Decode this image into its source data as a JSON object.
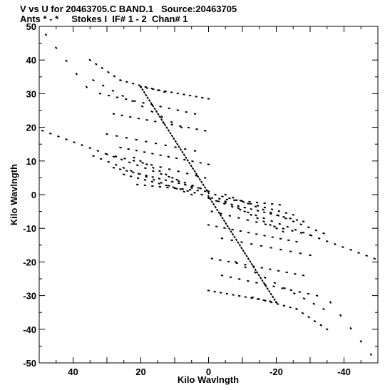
{
  "chart_data": {
    "type": "scatter",
    "title_line1": "V vs U for 20463705.C BAND.1   Source:20463705",
    "title_line2": "Ants * - *     Stokes I  IF# 1 - 2  Chan# 1",
    "xlabel": "Kilo Wavlngth",
    "ylabel": "Kilo Wavlngth",
    "xlim": [
      50,
      -50
    ],
    "ylim": [
      -50,
      50
    ],
    "x_ticks": [
      40,
      20,
      0,
      -20,
      -40
    ],
    "y_ticks": [
      50,
      40,
      30,
      20,
      10,
      0,
      -10,
      -20,
      -30,
      -40,
      -50
    ],
    "marker_color": "#000000",
    "tracks": [
      {
        "start": [
          48,
          47.5
        ],
        "end": [
          36,
          32
        ],
        "n": 5
      },
      {
        "start": [
          35,
          40
        ],
        "end": [
          26,
          34
        ],
        "n": 6
      },
      {
        "start": [
          26,
          34
        ],
        "end": [
          13,
          30.5
        ],
        "n": 8
      },
      {
        "start": [
          20,
          32
        ],
        "end": [
          0,
          28.5
        ],
        "n": 12
      },
      {
        "start": [
          34,
          34
        ],
        "end": [
          8,
          20
        ],
        "n": 10
      },
      {
        "start": [
          32,
          30
        ],
        "end": [
          4,
          24
        ],
        "n": 12
      },
      {
        "start": [
          28,
          24
        ],
        "end": [
          1,
          19
        ],
        "n": 12
      },
      {
        "start": [
          30,
          18
        ],
        "end": [
          4,
          13
        ],
        "n": 10
      },
      {
        "start": [
          26,
          14
        ],
        "end": [
          0,
          9
        ],
        "n": 12
      },
      {
        "start": [
          30,
          12
        ],
        "end": [
          1,
          5
        ],
        "n": 12
      },
      {
        "start": [
          34,
          11.5
        ],
        "end": [
          5,
          0
        ],
        "n": 14
      },
      {
        "start": [
          49,
          19
        ],
        "end": [
          0,
          1
        ],
        "n": 22
      },
      {
        "start": [
          22,
          11
        ],
        "end": [
          5,
          2
        ],
        "n": 10
      },
      {
        "start": [
          25,
          6
        ],
        "end": [
          2,
          0
        ],
        "n": 12
      },
      {
        "start": [
          21,
          3
        ],
        "end": [
          1,
          1
        ],
        "n": 10
      },
      {
        "start": [
          20,
          32
        ],
        "end": [
          0,
          0.5
        ],
        "n": 40
      },
      {
        "start": [
          28,
          8
        ],
        "end": [
          3,
          2
        ],
        "n": 14
      },
      {
        "start": [
          -48,
          -47.5
        ],
        "end": [
          -36,
          -32
        ],
        "n": 5
      },
      {
        "start": [
          -35,
          -40
        ],
        "end": [
          -26,
          -34
        ],
        "n": 6
      },
      {
        "start": [
          -26,
          -34
        ],
        "end": [
          -13,
          -30.5
        ],
        "n": 8
      },
      {
        "start": [
          -20,
          -32
        ],
        "end": [
          0,
          -28.5
        ],
        "n": 12
      },
      {
        "start": [
          -34,
          -34
        ],
        "end": [
          -8,
          -20
        ],
        "n": 10
      },
      {
        "start": [
          -32,
          -30
        ],
        "end": [
          -4,
          -24
        ],
        "n": 12
      },
      {
        "start": [
          -28,
          -24
        ],
        "end": [
          -1,
          -19
        ],
        "n": 12
      },
      {
        "start": [
          -30,
          -18
        ],
        "end": [
          -4,
          -13
        ],
        "n": 10
      },
      {
        "start": [
          -26,
          -14
        ],
        "end": [
          0,
          -9
        ],
        "n": 12
      },
      {
        "start": [
          -30,
          -12
        ],
        "end": [
          -1,
          -5
        ],
        "n": 12
      },
      {
        "start": [
          -34,
          -11.5
        ],
        "end": [
          -5,
          0
        ],
        "n": 14
      },
      {
        "start": [
          -49,
          -19
        ],
        "end": [
          0,
          -1
        ],
        "n": 22
      },
      {
        "start": [
          -22,
          -11
        ],
        "end": [
          -5,
          -2
        ],
        "n": 10
      },
      {
        "start": [
          -25,
          -6
        ],
        "end": [
          -2,
          0
        ],
        "n": 12
      },
      {
        "start": [
          -21,
          -3
        ],
        "end": [
          -1,
          -1
        ],
        "n": 10
      },
      {
        "start": [
          -20,
          -32
        ],
        "end": [
          0,
          -0.5
        ],
        "n": 40
      },
      {
        "start": [
          -28,
          -8
        ],
        "end": [
          -3,
          -2
        ],
        "n": 14
      }
    ]
  }
}
